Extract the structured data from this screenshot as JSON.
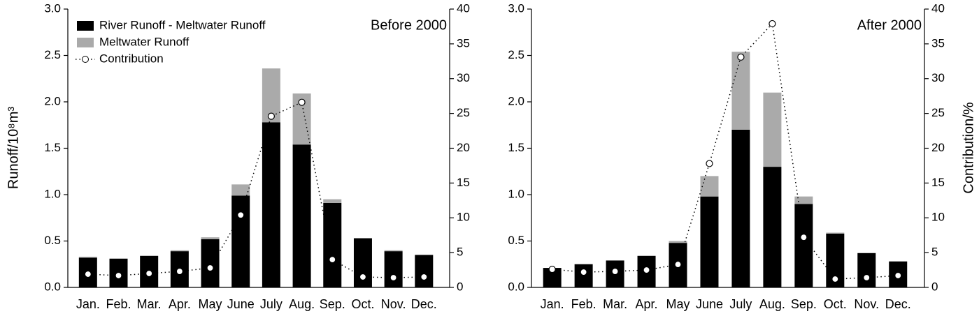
{
  "chart_data": [
    {
      "type": "bar",
      "annotation": "Before 2000",
      "ylabel": "Runoff/10⁸m³",
      "legend": "upper left",
      "categories": [
        "Jan.",
        "Feb.",
        "Mar.",
        "Apr.",
        "May",
        "June",
        "July",
        "Aug.",
        "Sep.",
        "Oct.",
        "Nov.",
        "Dec."
      ],
      "series": [
        {
          "name": "River Runoff - Meltwater Runoff",
          "type": "bar",
          "stacked": true,
          "color": "#000000",
          "values": [
            0.32,
            0.31,
            0.34,
            0.39,
            0.52,
            0.99,
            1.78,
            1.54,
            0.91,
            0.53,
            0.39,
            0.35
          ]
        },
        {
          "name": "Meltwater Runoff",
          "type": "bar",
          "stacked": true,
          "color": "#aaaaaa",
          "values": [
            0.01,
            0,
            0,
            0.01,
            0.02,
            0.12,
            0.58,
            0.55,
            0.04,
            0,
            0.01,
            0
          ]
        },
        {
          "name": "Contribution",
          "type": "line",
          "style": "dotted",
          "axis": "y2",
          "color": "#000000",
          "values": [
            1.9,
            1.7,
            2.0,
            2.3,
            2.8,
            10.4,
            24.6,
            26.6,
            4.0,
            1.5,
            1.4,
            1.5
          ]
        }
      ],
      "ylim": [
        0,
        3
      ],
      "yticks": [
        {
          "value": 0,
          "label": "0.0"
        },
        0.5,
        {
          "value": 1,
          "label": "1.0"
        },
        1.5,
        {
          "value": 2,
          "label": "2.0"
        },
        2.5,
        {
          "value": 3,
          "label": "3.0"
        }
      ],
      "y2lim": [
        0,
        40
      ],
      "y2ticks": [
        0,
        5,
        10,
        15,
        20,
        25,
        30,
        35,
        40
      ]
    },
    {
      "type": "bar",
      "annotation": "After 2000",
      "y2label": "Contribution/%",
      "categories": [
        "Jan.",
        "Feb.",
        "Mar.",
        "Apr.",
        "May",
        "June",
        "July",
        "Aug.",
        "Sep.",
        "Oct.",
        "Nov.",
        "Dec."
      ],
      "series": [
        {
          "type": "bar",
          "stacked": true,
          "color": "#000000",
          "values": [
            0.21,
            0.25,
            0.29,
            0.34,
            0.48,
            0.98,
            1.7,
            1.3,
            0.9,
            0.58,
            0.37,
            0.28
          ]
        },
        {
          "type": "bar",
          "stacked": true,
          "color": "#aaaaaa",
          "values": [
            0,
            0,
            0,
            0,
            0.02,
            0.22,
            0.84,
            0.8,
            0.08,
            0.01,
            0,
            0
          ]
        },
        {
          "type": "line",
          "style": "dotted",
          "axis": "y2",
          "color": "#000000",
          "values": [
            2.6,
            2.2,
            2.3,
            2.5,
            3.3,
            17.8,
            33.1,
            37.9,
            7.2,
            1.2,
            1.4,
            1.7
          ]
        }
      ],
      "ylim": [
        0,
        3
      ],
      "yticks": [
        {
          "value": 0,
          "label": "0.0"
        },
        0.5,
        {
          "value": 1,
          "label": "1.0"
        },
        1.5,
        {
          "value": 2,
          "label": "2.0"
        },
        2.5,
        {
          "value": 3,
          "label": "3.0"
        }
      ],
      "y2lim": [
        0,
        40
      ],
      "y2ticks": [
        0,
        5,
        10,
        15,
        20,
        25,
        30,
        35,
        40
      ]
    }
  ]
}
